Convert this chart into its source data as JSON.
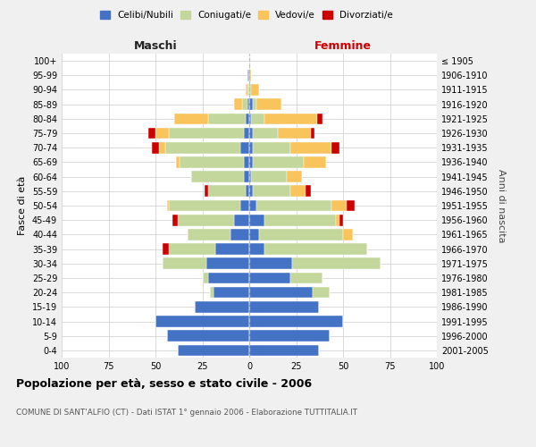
{
  "age_groups": [
    "0-4",
    "5-9",
    "10-14",
    "15-19",
    "20-24",
    "25-29",
    "30-34",
    "35-39",
    "40-44",
    "45-49",
    "50-54",
    "55-59",
    "60-64",
    "65-69",
    "70-74",
    "75-79",
    "80-84",
    "85-89",
    "90-94",
    "95-99",
    "100+"
  ],
  "birth_years": [
    "2001-2005",
    "1996-2000",
    "1991-1995",
    "1986-1990",
    "1981-1985",
    "1976-1980",
    "1971-1975",
    "1966-1970",
    "1961-1965",
    "1956-1960",
    "1951-1955",
    "1946-1950",
    "1941-1945",
    "1936-1940",
    "1931-1935",
    "1926-1930",
    "1921-1925",
    "1916-1920",
    "1911-1915",
    "1906-1910",
    "≤ 1905"
  ],
  "male_celibe": [
    38,
    44,
    50,
    29,
    19,
    22,
    23,
    18,
    10,
    8,
    5,
    2,
    3,
    3,
    5,
    3,
    2,
    1,
    0,
    1,
    0
  ],
  "male_coniugato": [
    0,
    0,
    0,
    0,
    2,
    3,
    23,
    25,
    23,
    30,
    38,
    20,
    28,
    34,
    40,
    40,
    20,
    3,
    1,
    0,
    0
  ],
  "male_vedovo": [
    0,
    0,
    0,
    0,
    0,
    0,
    0,
    0,
    0,
    0,
    1,
    0,
    0,
    2,
    3,
    7,
    18,
    4,
    1,
    0,
    0
  ],
  "male_divorziato": [
    0,
    0,
    0,
    0,
    0,
    0,
    0,
    3,
    0,
    3,
    0,
    2,
    0,
    0,
    4,
    4,
    0,
    0,
    0,
    0,
    0
  ],
  "female_celibe": [
    37,
    43,
    50,
    37,
    34,
    22,
    23,
    8,
    5,
    8,
    4,
    2,
    1,
    2,
    2,
    2,
    1,
    2,
    0,
    0,
    0
  ],
  "female_coniugata": [
    0,
    0,
    0,
    0,
    9,
    17,
    47,
    55,
    45,
    38,
    40,
    20,
    19,
    27,
    20,
    13,
    7,
    2,
    1,
    0,
    0
  ],
  "female_vedova": [
    0,
    0,
    0,
    0,
    0,
    0,
    0,
    0,
    5,
    2,
    8,
    8,
    8,
    12,
    22,
    18,
    28,
    13,
    4,
    1,
    0
  ],
  "female_divorziata": [
    0,
    0,
    0,
    0,
    0,
    0,
    0,
    0,
    0,
    2,
    4,
    3,
    0,
    0,
    4,
    2,
    3,
    0,
    0,
    0,
    0
  ],
  "colors": {
    "celibe": "#4472c4",
    "coniugato": "#c3d69b",
    "vedovo": "#fac45c",
    "divorziato": "#cc0000"
  },
  "title": "Popolazione per età, sesso e stato civile - 2006",
  "subtitle": "COMUNE DI SANT'ALFIO (CT) - Dati ISTAT 1° gennaio 2006 - Elaborazione TUTTITALIA.IT",
  "label_maschi": "Maschi",
  "label_femmine": "Femmine",
  "ylabel_left": "Fasce di età",
  "ylabel_right": "Anni di nascita",
  "xlim": 100,
  "bg_color": "#f0f0f0",
  "plot_bg": "#ffffff",
  "legend_labels": [
    "Celibi/Nubili",
    "Coniugati/e",
    "Vedovi/e",
    "Divorziati/e"
  ]
}
